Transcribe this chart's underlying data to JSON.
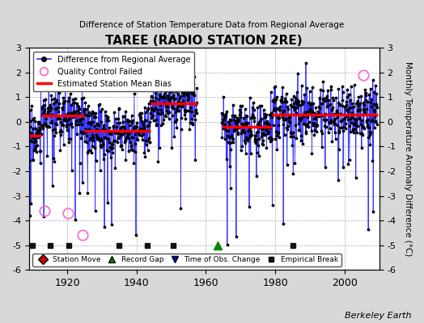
{
  "title": "TAREE (RADIO STATION 2RE)",
  "subtitle": "Difference of Station Temperature Data from Regional Average",
  "ylabel": "Monthly Temperature Anomaly Difference (°C)",
  "xlabel_years": [
    1920,
    1940,
    1960,
    1980,
    2000
  ],
  "ylim": [
    -6,
    3
  ],
  "yticks": [
    -6,
    -5,
    -4,
    -3,
    -2,
    -1,
    0,
    1,
    2,
    3
  ],
  "xmin": 1909,
  "xmax": 2010,
  "seed": 17,
  "background_color": "#d8d8d8",
  "plot_bg_color": "#ffffff",
  "line_color": "#3333ff",
  "dot_color": "#000000",
  "bias_color": "#ff0000",
  "station_move_color": "#cc0000",
  "record_gap_color": "#008800",
  "obs_change_color": "#0000cc",
  "emp_break_color": "#111111",
  "qc_color": "#ff66cc",
  "watermark": "Berkeley Earth",
  "data_periods": [
    {
      "start": 1909.0,
      "end": 1957.5
    },
    {
      "start": 1964.5,
      "end": 2009.5
    }
  ],
  "bias_segments": [
    {
      "x_start": 1909.0,
      "x_end": 1912.5,
      "bias": -0.55
    },
    {
      "x_start": 1912.5,
      "x_end": 1925.0,
      "bias": 0.25
    },
    {
      "x_start": 1925.0,
      "x_end": 1944.0,
      "bias": -0.35
    },
    {
      "x_start": 1944.0,
      "x_end": 1957.5,
      "bias": 0.75
    },
    {
      "x_start": 1964.5,
      "x_end": 1979.0,
      "bias": -0.2
    },
    {
      "x_start": 1979.0,
      "x_end": 2009.5,
      "bias": 0.3
    }
  ],
  "emp_breaks_x": [
    1910.0,
    1915.0,
    1920.5,
    1935.0,
    1943.0,
    1950.5,
    1985.0
  ],
  "record_gap_x": [
    1963.5
  ],
  "station_moves_x": [],
  "obs_changes_x": [],
  "qc_failed_approx": [
    [
      1913.5,
      -3.6
    ],
    [
      1920.2,
      -3.7
    ],
    [
      1924.5,
      -4.6
    ],
    [
      2005.5,
      1.9
    ]
  ]
}
